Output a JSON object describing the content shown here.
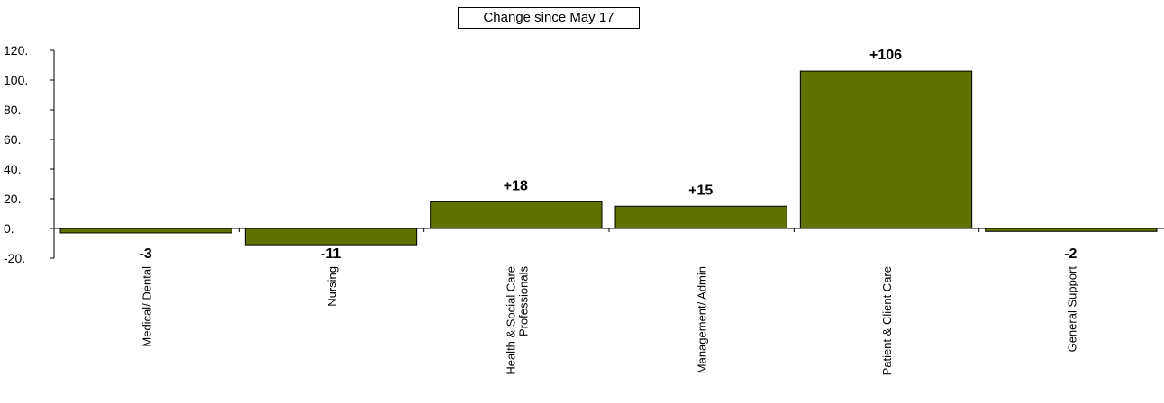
{
  "chart_data": {
    "type": "bar",
    "title": "Change since May 17",
    "categories": [
      "Medical/ Dental",
      "Nursing",
      "Health & Social Care Professionals",
      "Management/ Admin",
      "Patient & Client Care",
      "General Support"
    ],
    "category_lines": [
      [
        "Medical/ Dental"
      ],
      [
        "Nursing"
      ],
      [
        "Health & Social Care",
        "Professionals"
      ],
      [
        "Management/ Admin"
      ],
      [
        "Patient & Client Care"
      ],
      [
        "General Support"
      ]
    ],
    "values": [
      -3,
      -11,
      18,
      15,
      106,
      -2
    ],
    "data_labels": [
      "-3",
      "-11",
      "+18",
      "+15",
      "+106",
      "-2"
    ],
    "y_ticks": [
      "120.",
      "100.",
      "80.",
      "60.",
      "40.",
      "20.",
      "0.",
      "-20."
    ],
    "y_tick_values": [
      120,
      100,
      80,
      60,
      40,
      20,
      0,
      -20
    ],
    "ylim": [
      -20,
      120
    ],
    "xlabel": "",
    "ylabel": "",
    "grid": false,
    "bar_color": "#5f7100",
    "legend": "none"
  }
}
